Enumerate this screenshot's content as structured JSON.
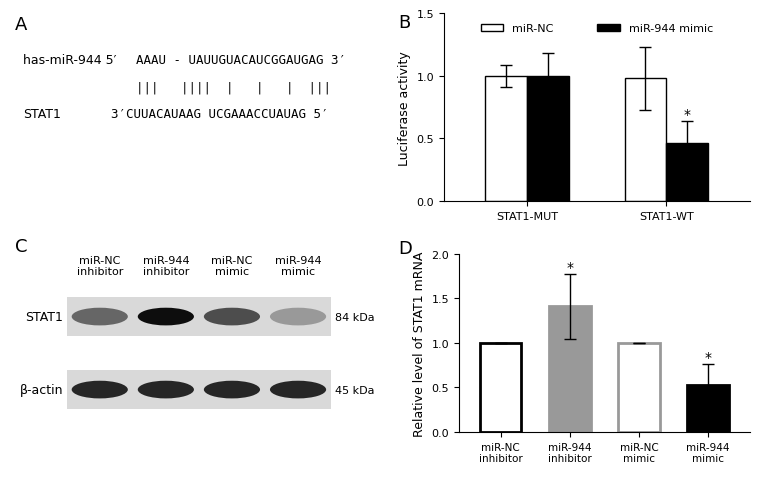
{
  "alignment": {
    "panel_label": "A",
    "mirna_label": "has-miR-944 5′",
    "mirna_sequence": "AAAU - UAUUGUACAUCGGAUGAG 3′",
    "pairing": "|||   ||||  |   |   |  |||",
    "target_label": "STAT1",
    "target_sequence": "3′CUUACAUAAG UCGAAACCUAUAG 5′"
  },
  "chart_data": [
    {
      "type": "bar",
      "panel_label": "B",
      "y_label": "Luciferase activity",
      "categories": [
        "STAT1-MUT",
        "STAT1-WT"
      ],
      "series": [
        {
          "name": "miR-NC",
          "color": "#ffffff",
          "values": [
            1.0,
            0.98
          ],
          "error": [
            0.09,
            0.25
          ]
        },
        {
          "name": "miR-944 mimic",
          "color": "#000000",
          "values": [
            1.0,
            0.46
          ],
          "error": [
            0.18,
            0.18
          ]
        }
      ],
      "annotations": [
        {
          "text": "*",
          "category": "STAT1-WT",
          "series": "miR-944 mimic"
        }
      ],
      "ylim": [
        0.0,
        1.5
      ],
      "yticks": [
        0.0,
        0.5,
        1.0,
        1.5
      ],
      "legend": "upper center",
      "grid": false
    },
    {
      "type": "bar",
      "panel_label": "D",
      "y_label": "Relative level of STAT1 mRNA",
      "categories": [
        "miR-NC\ninhibitor",
        "miR-944\ninhibitor",
        "miR-NC\nmimic",
        "miR-944\nmimic"
      ],
      "values": [
        1.0,
        1.41,
        1.0,
        0.53
      ],
      "error": [
        0,
        0.37,
        0,
        0.23
      ],
      "colors": [
        "#ffffff",
        "#999999",
        "#ffffff",
        "#000000"
      ],
      "annotations": [
        {
          "text": "*",
          "category": "miR-944\ninhibitor"
        },
        {
          "text": "*",
          "category": "miR-944\nmimic"
        }
      ],
      "ylim": [
        0.0,
        2.0
      ],
      "yticks": [
        0.0,
        0.5,
        1.0,
        1.5,
        2.0
      ],
      "grid": false
    }
  ],
  "blot": {
    "panel_label": "C",
    "lanes": [
      "miR-NC\ninhibitor",
      "miR-944\ninhibitor",
      "miR-NC\nmimic",
      "miR-944\nmimic"
    ],
    "rows": [
      {
        "label": "STAT1",
        "size": "84 kDa",
        "intensity": [
          0.6,
          0.95,
          0.7,
          0.4
        ]
      },
      {
        "label": "β-actin",
        "size": "45 kDa",
        "intensity": [
          0.85,
          0.85,
          0.85,
          0.85
        ]
      }
    ]
  }
}
